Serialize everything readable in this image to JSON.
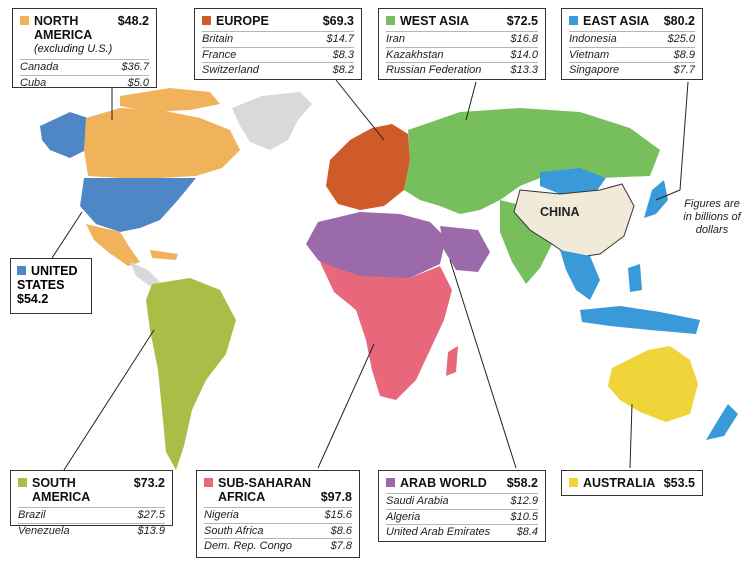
{
  "note": "Figures are in billions of dollars",
  "china_label": "CHINA",
  "colors": {
    "north_america": "#f0b25a",
    "united_states": "#4f86c6",
    "europe": "#cf5a2a",
    "west_asia": "#77bf5d",
    "east_asia": "#3a9ad9",
    "south_america": "#a9bd47",
    "sub_saharan_africa": "#e8677a",
    "arab_world": "#9a6aaa",
    "australia": "#efd43a",
    "china": "#f1ead8",
    "other": "#d9d9d9"
  },
  "regions": {
    "north_america": {
      "name": "NORTH AMERICA",
      "subtitle": "(excluding U.S.)",
      "total": "$48.2",
      "items": [
        {
          "country": "Canada",
          "value": "$36.7"
        },
        {
          "country": "Cuba",
          "value": "$5.0"
        }
      ]
    },
    "europe": {
      "name": "EUROPE",
      "total": "$69.3",
      "items": [
        {
          "country": "Britain",
          "value": "$14.7"
        },
        {
          "country": "France",
          "value": "$8.3"
        },
        {
          "country": "Switzerland",
          "value": "$8.2"
        }
      ]
    },
    "west_asia": {
      "name": "WEST ASIA",
      "total": "$72.5",
      "items": [
        {
          "country": "Iran",
          "value": "$16.8"
        },
        {
          "country": "Kazakhstan",
          "value": "$14.0"
        },
        {
          "country": "Russian Federation",
          "value": "$13.3"
        }
      ]
    },
    "east_asia": {
      "name": "EAST ASIA",
      "total": "$80.2",
      "items": [
        {
          "country": "Indonesia",
          "value": "$25.0"
        },
        {
          "country": "Vietnam",
          "value": "$8.9"
        },
        {
          "country": "Singapore",
          "value": "$7.7"
        }
      ]
    },
    "united_states": {
      "name_line1": "UNITED",
      "name_line2": "STATES",
      "total": "$54.2"
    },
    "south_america": {
      "name": "SOUTH AMERICA",
      "total": "$73.2",
      "items": [
        {
          "country": "Brazil",
          "value": "$27.5"
        },
        {
          "country": "Venezuela",
          "value": "$13.9"
        }
      ]
    },
    "sub_saharan_africa": {
      "name_line1": "SUB-SAHARAN",
      "name_line2": "AFRICA",
      "total": "$97.8",
      "items": [
        {
          "country": "Nigeria",
          "value": "$15.6"
        },
        {
          "country": "South Africa",
          "value": "$8.6"
        },
        {
          "country": "Dem. Rep. Congo",
          "value": "$7.8"
        }
      ]
    },
    "arab_world": {
      "name": "ARAB WORLD",
      "total": "$58.2",
      "items": [
        {
          "country": "Saudi Arabia",
          "value": "$12.9"
        },
        {
          "country": "Algeria",
          "value": "$10.5"
        },
        {
          "country": "United Arab Emirates",
          "value": "$8.4"
        }
      ]
    },
    "australia": {
      "name": "AUSTRALIA",
      "total": "$53.5"
    }
  }
}
